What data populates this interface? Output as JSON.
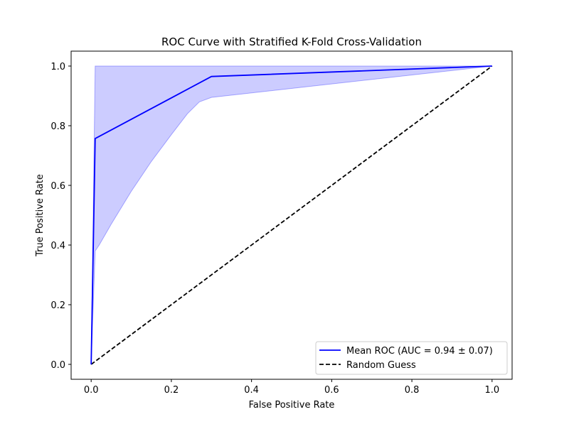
{
  "chart_data": {
    "type": "line",
    "title": "ROC Curve with Stratified K-Fold Cross-Validation",
    "xlabel": "False Positive Rate",
    "ylabel": "True Positive Rate",
    "xlim": [
      -0.05,
      1.05
    ],
    "ylim": [
      -0.05,
      1.05
    ],
    "xticks": [
      0.0,
      0.2,
      0.4,
      0.6,
      0.8,
      1.0
    ],
    "yticks": [
      0.0,
      0.2,
      0.4,
      0.6,
      0.8,
      1.0
    ],
    "xtick_labels": [
      "0.0",
      "0.2",
      "0.4",
      "0.6",
      "0.8",
      "1.0"
    ],
    "ytick_labels": [
      "0.0",
      "0.2",
      "0.4",
      "0.6",
      "0.8",
      "1.0"
    ],
    "grid": false,
    "legend_position": "lower-right",
    "series": [
      {
        "name": "Mean ROC (AUC = 0.94 ± 0.07)",
        "color": "#0000ff",
        "style": "solid",
        "x": [
          0.0,
          0.01,
          0.3,
          1.0
        ],
        "y": [
          0.0,
          0.757,
          0.965,
          1.0
        ]
      },
      {
        "name": "Random Guess",
        "color": "#000000",
        "style": "dashed",
        "x": [
          0.0,
          1.0
        ],
        "y": [
          0.0,
          1.0
        ]
      }
    ],
    "band": {
      "color": "#0000ff",
      "opacity": 0.2,
      "upper": {
        "x": [
          0.0,
          0.01,
          1.0
        ],
        "y": [
          0.0,
          1.0,
          1.0
        ]
      },
      "lower": {
        "x": [
          0.0,
          0.01,
          0.02,
          0.05,
          0.1,
          0.15,
          0.2,
          0.24,
          0.27,
          0.3,
          1.0
        ],
        "y": [
          0.0,
          0.38,
          0.4,
          0.47,
          0.58,
          0.68,
          0.77,
          0.84,
          0.88,
          0.895,
          1.0
        ]
      }
    }
  }
}
